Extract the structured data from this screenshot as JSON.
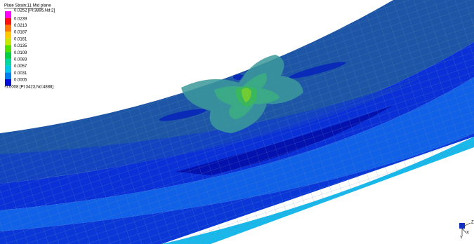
{
  "legend": {
    "title": "Plate Strain:11 Mid plane",
    "entries": [
      {
        "label": "0.0252 [Pl:3895,Nd:2]",
        "color": "#ff00ff"
      },
      {
        "label": "0.0239",
        "color": "#ff1010"
      },
      {
        "label": "0.0213",
        "color": "#ff7800"
      },
      {
        "label": "0.0187",
        "color": "#ffc800"
      },
      {
        "label": "0.0161",
        "color": "#c8e800"
      },
      {
        "label": "0.0135",
        "color": "#50e000"
      },
      {
        "label": "0.0109",
        "color": "#00d040"
      },
      {
        "label": "0.0083",
        "color": "#00d8a0"
      },
      {
        "label": "0.0057",
        "color": "#00c8e8"
      },
      {
        "label": "0.0031",
        "color": "#0080f0"
      },
      {
        "label": "0.0005",
        "color": "#0010d8"
      },
      {
        "label": "-0.0008 [Pl:3423,Nd:4888]",
        "color": null
      }
    ]
  },
  "triad": {
    "z": "Z",
    "x": "X",
    "y": "Y"
  }
}
